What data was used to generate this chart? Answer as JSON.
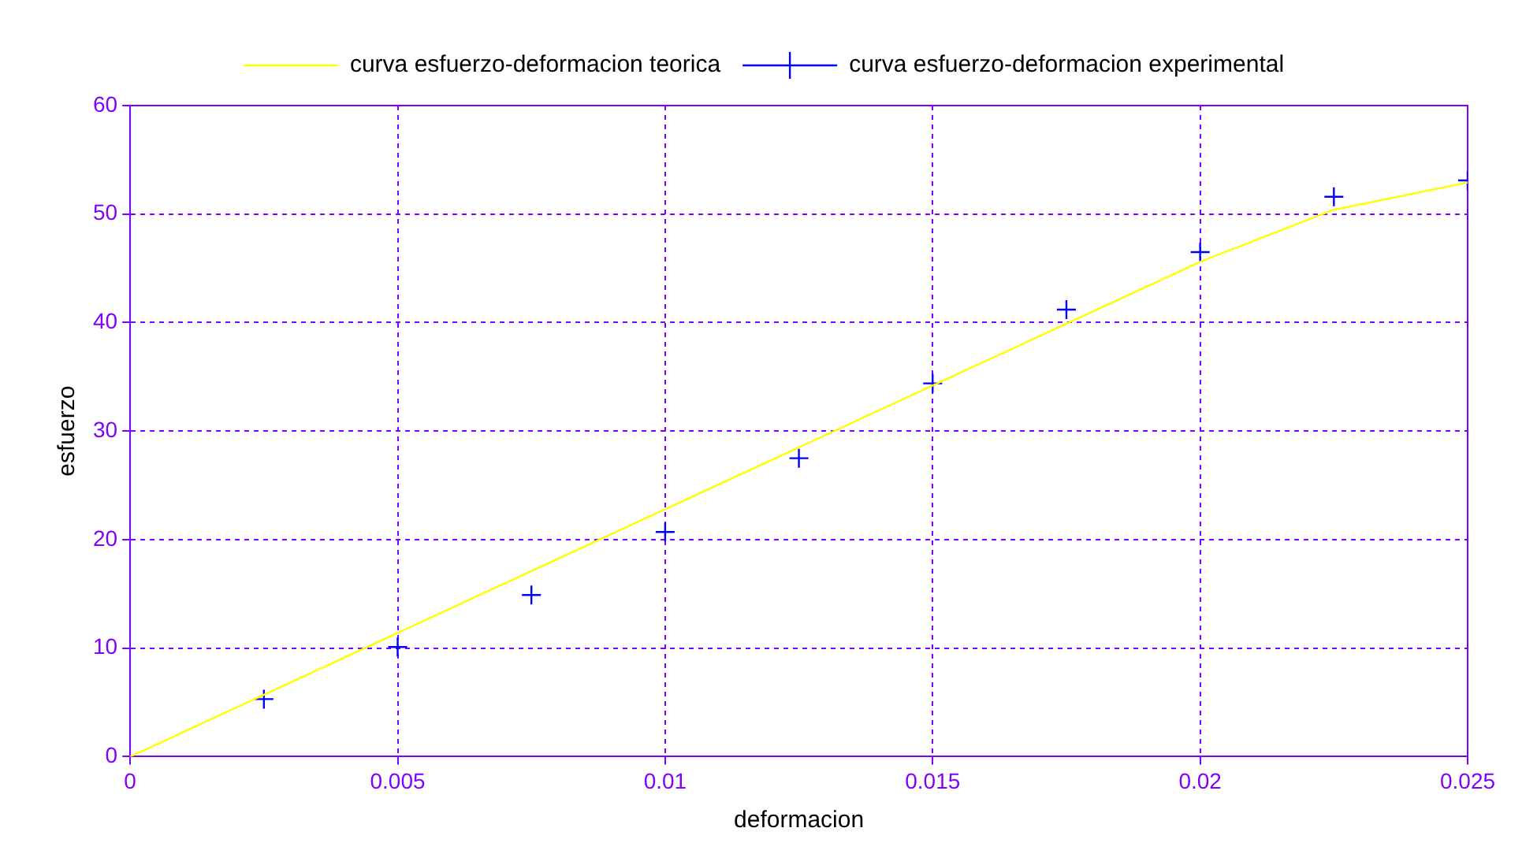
{
  "chart_data": {
    "type": "line",
    "xlabel": "deformacion",
    "ylabel": "esfuerzo",
    "xlim": [
      0,
      0.025
    ],
    "xticks": [
      0,
      0.005,
      0.01,
      0.015,
      0.02,
      0.025
    ],
    "ylim": [
      0,
      60
    ],
    "yticks": [
      0,
      10,
      20,
      30,
      40,
      50,
      60
    ],
    "grid": true,
    "legend": "top",
    "series": [
      {
        "name": "curva esfuerzo-deformacion teorica",
        "color": "#ffff00",
        "marker": "none",
        "x": [
          0,
          0.0025,
          0.005,
          0.0075,
          0.01,
          0.0125,
          0.015,
          0.0175,
          0.02,
          0.0225,
          0.025
        ],
        "values": [
          0,
          5.7,
          11.4,
          17.1,
          22.8,
          28.5,
          34.2,
          39.9,
          45.6,
          50.4,
          52.9
        ]
      },
      {
        "name": "curva esfuerzo-deformacion experimental",
        "type": "scatter",
        "color": "#0000ff",
        "marker": "cross",
        "x": [
          0.0025,
          0.005,
          0.0075,
          0.01,
          0.0125,
          0.015,
          0.0175,
          0.02,
          0.0225,
          0.025
        ],
        "values": [
          5.3,
          10.1,
          14.9,
          20.7,
          27.5,
          34.4,
          41.2,
          46.5,
          51.6,
          53.1
        ]
      }
    ]
  }
}
